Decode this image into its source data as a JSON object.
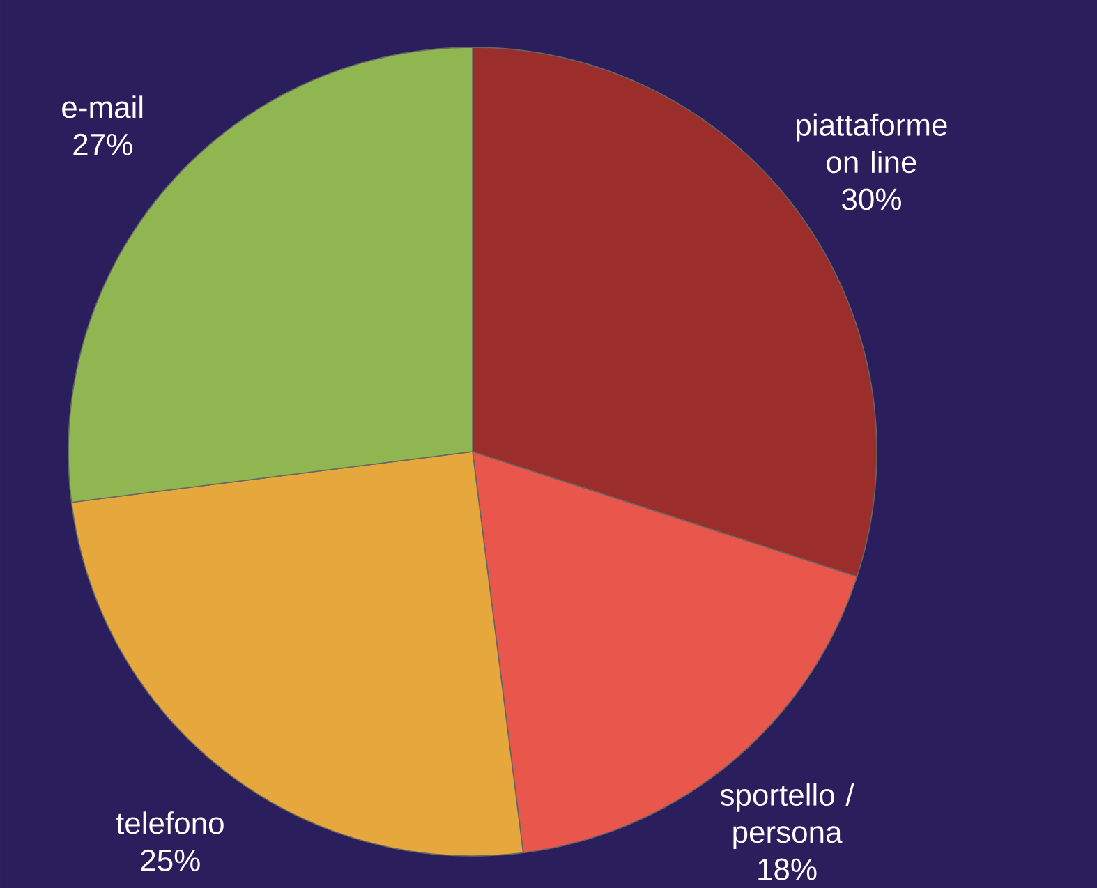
{
  "chart_data": {
    "type": "pie",
    "categories": [
      "piattaforme on line",
      "sportello / persona",
      "telefono",
      "e-mail"
    ],
    "values": [
      30,
      18,
      25,
      27
    ],
    "value_labels": [
      "30%",
      "18%",
      "25%",
      "27%"
    ],
    "colors": [
      "#9b2d2a",
      "#e8564c",
      "#e6a83c",
      "#8fb650"
    ]
  }
}
